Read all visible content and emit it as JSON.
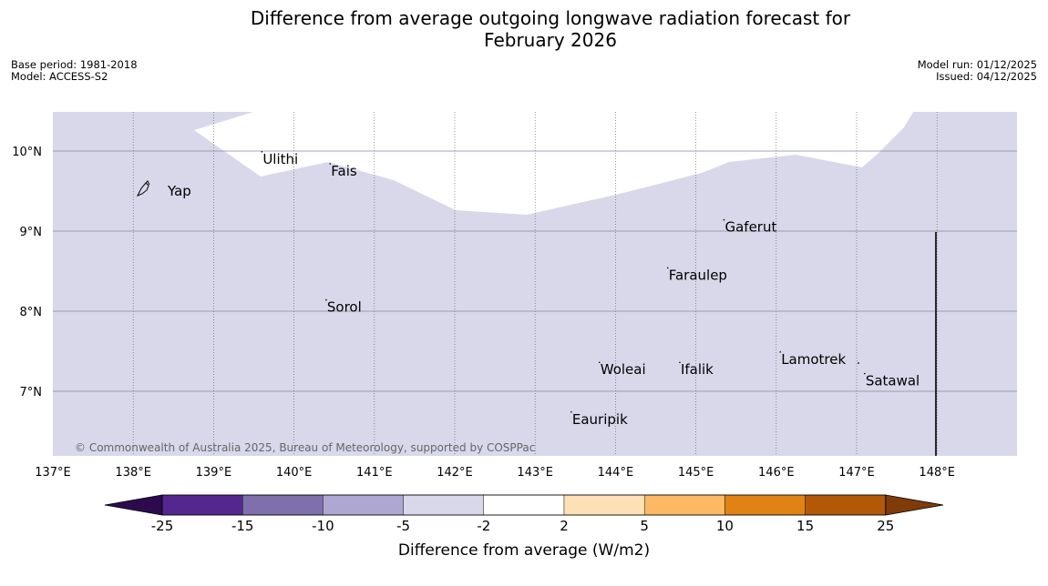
{
  "title": {
    "line1": "Difference from average outgoing longwave radiation forecast for",
    "line2": "February 2026"
  },
  "metadata": {
    "base_period": "Base period: 1981-2018",
    "model": "Model: ACCESS-S2",
    "model_run": "Model run: 01/12/2025",
    "issued": "Issued: 04/12/2025"
  },
  "map": {
    "lon_range": [
      137,
      149
    ],
    "lat_range": [
      6.2,
      10.5
    ],
    "lon_ticks": [
      "137°E",
      "138°E",
      "139°E",
      "140°E",
      "141°E",
      "142°E",
      "143°E",
      "144°E",
      "145°E",
      "146°E",
      "147°E",
      "148°E"
    ],
    "lat_ticks": [
      "10°N",
      "9°N",
      "8°N",
      "7°N"
    ],
    "background_category": "-5 to -2",
    "places": [
      {
        "name": "Yap",
        "lon": 138.1,
        "lat": 9.5
      },
      {
        "name": "Ulithi",
        "lon": 139.6,
        "lat": 9.9
      },
      {
        "name": "Fais",
        "lon": 140.45,
        "lat": 9.75
      },
      {
        "name": "Gaferut",
        "lon": 145.35,
        "lat": 9.05
      },
      {
        "name": "Faraulep",
        "lon": 144.65,
        "lat": 8.45
      },
      {
        "name": "Sorol",
        "lon": 140.4,
        "lat": 8.05
      },
      {
        "name": "Lamotrek",
        "lon": 146.05,
        "lat": 7.4
      },
      {
        "name": "Woleai",
        "lon": 143.8,
        "lat": 7.27
      },
      {
        "name": "Ifalik",
        "lon": 144.8,
        "lat": 7.27
      },
      {
        "name": "Satawal",
        "lon": 147.1,
        "lat": 7.13
      },
      {
        "name": "Eauripik",
        "lon": 143.45,
        "lat": 6.65
      }
    ],
    "copyright": "© Commonwealth of Australia 2025, Bureau of Meteorology, supported by COSPPac"
  },
  "colorbar": {
    "label": "Difference from average (W/m2)",
    "ticks": [
      "-25",
      "-15",
      "-10",
      "-5",
      "-2",
      "2",
      "5",
      "10",
      "15",
      "25"
    ],
    "colors": {
      "below_min": "#2d0a4e",
      "bins": [
        "#54278f",
        "#7f6fac",
        "#aea7d2",
        "#d8d8ea",
        "#ffffff",
        "#fde0b6",
        "#fdb863",
        "#e08214",
        "#b35806"
      ],
      "above_max": "#7f3b08"
    }
  }
}
